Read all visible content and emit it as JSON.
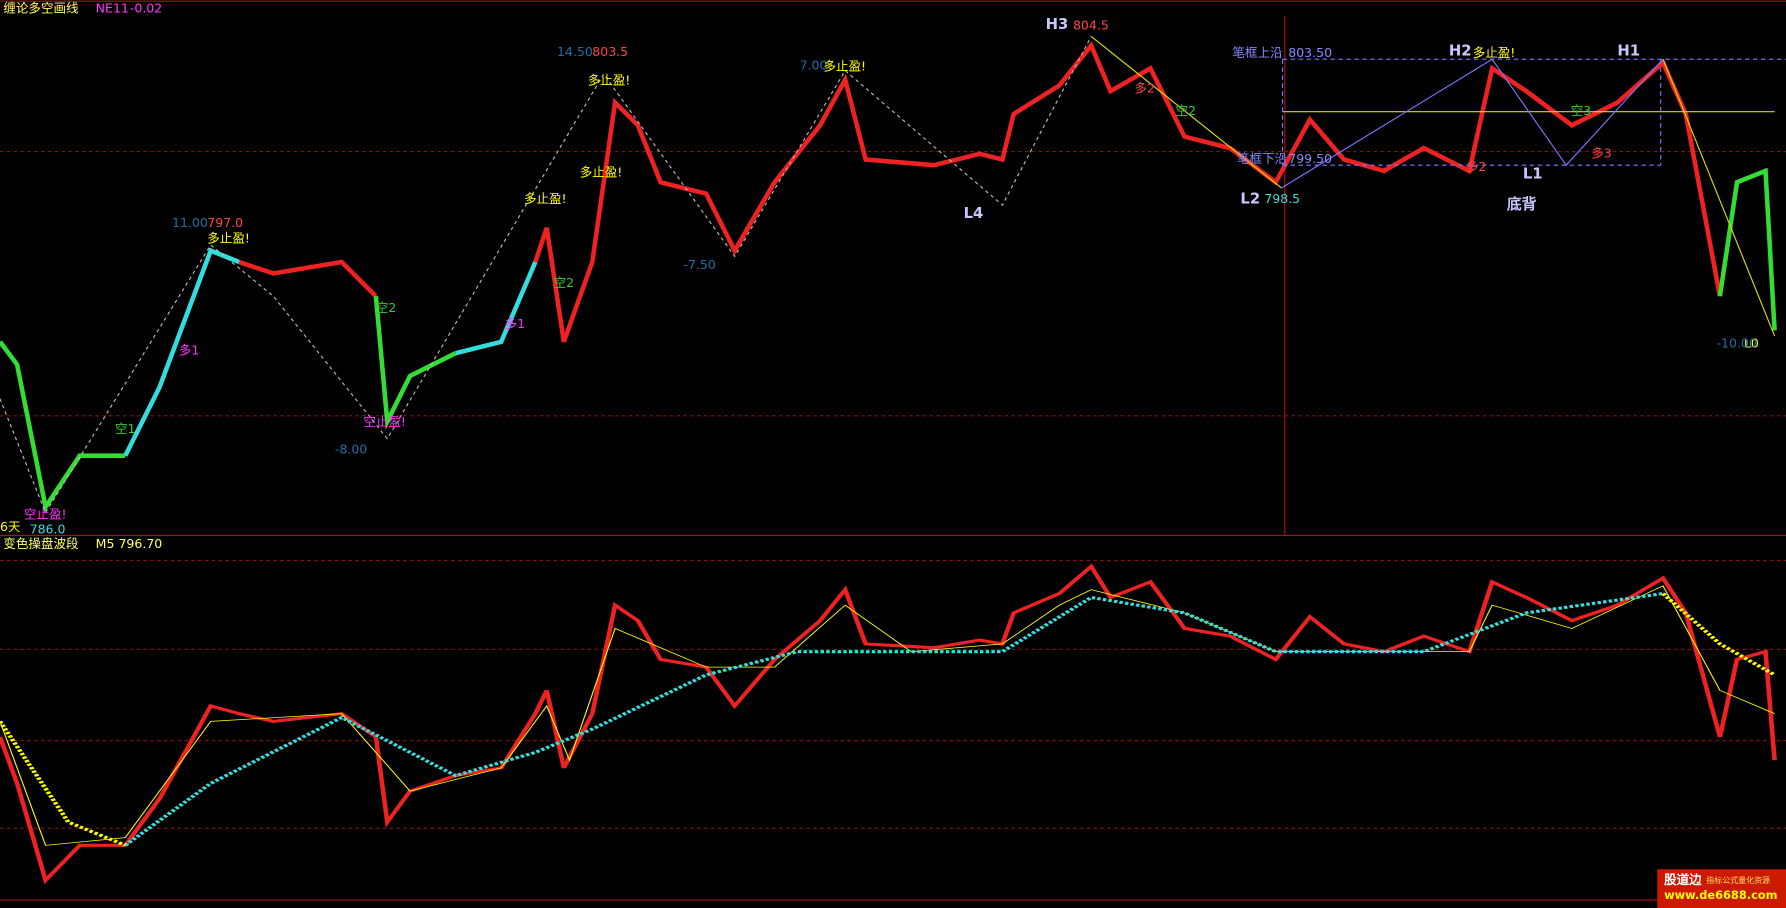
{
  "top_panel": {
    "indicator": "缠论多空画线",
    "param": "NE11",
    "value": "-0.02",
    "annotations": [
      "H3",
      "804.5",
      "14.50",
      "803.5",
      "多止盈!",
      "7.00",
      "多止盈!",
      "11.00",
      "797.0",
      "多止盈!",
      "多止盈!",
      "多止盈!",
      "L4",
      "-7.50",
      "-8.00",
      "空止盈!",
      "空止盈!",
      "786.0",
      "6天",
      "笔框上沿",
      "803.50",
      "笔框下沿",
      "799.50",
      "L2",
      "798.5",
      "H2",
      "多止盈!",
      "H1",
      "L1",
      "底背",
      "多2",
      "空2",
      "多1",
      "空1",
      "空3",
      "多3",
      "空2",
      "多2",
      "空2",
      "L0",
      "-10.00",
      "多1"
    ]
  },
  "bottom_panel": {
    "indicator": "变色操盘波段",
    "param": "M5",
    "value": "796.70"
  },
  "watermark": {
    "brand": "股道边",
    "tagline": "指标公式量化资源",
    "url": "www.de6688.com"
  }
}
